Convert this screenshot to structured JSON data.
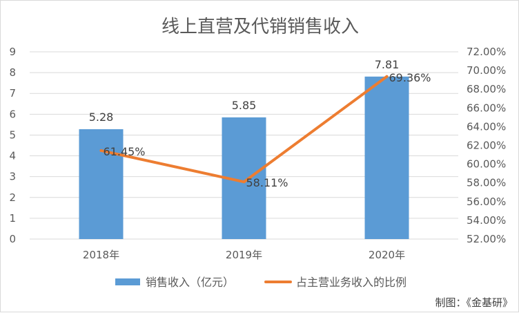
{
  "chart_data": {
    "type": "bar",
    "title": "线上直营及代销销售收入",
    "categories": [
      "2018年",
      "2019年",
      "2020年"
    ],
    "series": [
      {
        "name": "销售收入（亿元）",
        "type": "bar",
        "axis": "left",
        "values": [
          5.28,
          5.85,
          7.81
        ],
        "data_labels": [
          "5.28",
          "5.85",
          "7.81"
        ],
        "color": "#5b9bd5"
      },
      {
        "name": "占主营业务收入的比例",
        "type": "line",
        "axis": "right",
        "values": [
          61.45,
          58.11,
          69.36
        ],
        "data_labels": [
          "61.45%",
          "58.11%",
          "69.36%"
        ],
        "color": "#ed7d31"
      }
    ],
    "y_left": {
      "min": 0,
      "max": 9,
      "ticks": [
        "0",
        "1",
        "2",
        "3",
        "4",
        "5",
        "6",
        "7",
        "8",
        "9"
      ]
    },
    "y_right": {
      "min": 52,
      "max": 72,
      "ticks": [
        "52.00%",
        "54.00%",
        "56.00%",
        "58.00%",
        "60.00%",
        "62.00%",
        "64.00%",
        "66.00%",
        "68.00%",
        "70.00%",
        "72.00%"
      ]
    },
    "grid": true,
    "legend_position": "bottom"
  },
  "credit": "制图：《金基研》",
  "colors": {
    "gridline": "#d9d9d9",
    "text": "#595959"
  }
}
